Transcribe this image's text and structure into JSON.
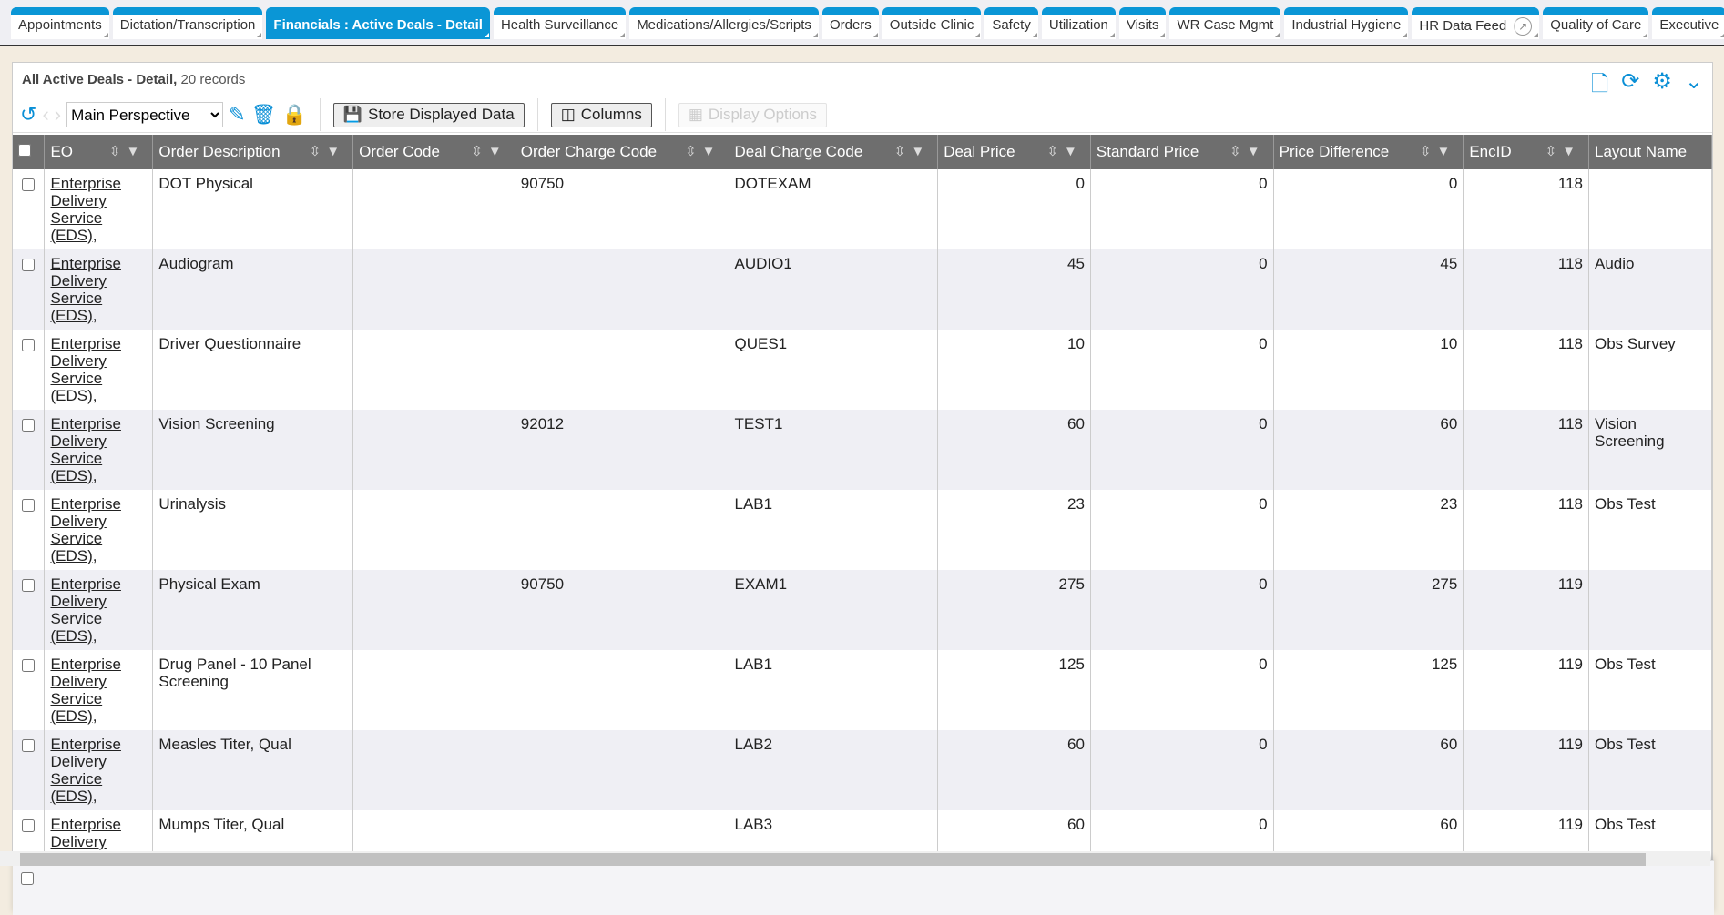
{
  "tabs": [
    {
      "label": "Appointments",
      "active": false
    },
    {
      "label": "Dictation/Transcription",
      "active": false
    },
    {
      "label": "Financials : Active Deals - Detail",
      "active": true
    },
    {
      "label": "Health Surveillance",
      "active": false
    },
    {
      "label": "Medications/Allergies/Scripts",
      "active": false
    },
    {
      "label": "Orders",
      "active": false
    },
    {
      "label": "Outside Clinic",
      "active": false
    },
    {
      "label": "Safety",
      "active": false
    },
    {
      "label": "Utilization",
      "active": false
    },
    {
      "label": "Visits",
      "active": false
    },
    {
      "label": "WR Case Mgmt",
      "active": false
    },
    {
      "label": "Industrial Hygiene",
      "active": false
    },
    {
      "label": "HR Data Feed",
      "active": false,
      "external": true
    },
    {
      "label": "Quality of Care",
      "active": false
    },
    {
      "label": "Executive",
      "active": false
    }
  ],
  "panel": {
    "title": "All Active Deals - Detail,",
    "count": "20 records"
  },
  "toolbar": {
    "perspective": "Main Perspective",
    "store": "Store Displayed Data",
    "columns": "Columns",
    "display_options": "Display Options"
  },
  "columns": [
    "EO",
    "Order Description",
    "Order Code",
    "Order Charge Code",
    "Deal Charge Code",
    "Deal Price",
    "Standard Price",
    "Price Difference",
    "EncID",
    "Layout Name"
  ],
  "rows": [
    [
      "Enterprise Delivery Service (EDS),",
      "DOT Physical",
      "",
      "90750",
      "DOTEXAM",
      "0",
      "0",
      "0",
      "118",
      ""
    ],
    [
      "Enterprise Delivery Service (EDS),",
      "Audiogram",
      "",
      "",
      "AUDIO1",
      "45",
      "0",
      "45",
      "118",
      "Audio"
    ],
    [
      "Enterprise Delivery Service (EDS),",
      "Driver Questionnaire",
      "",
      "",
      "QUES1",
      "10",
      "0",
      "10",
      "118",
      "Obs Survey"
    ],
    [
      "Enterprise Delivery Service (EDS),",
      "Vision Screening",
      "",
      "92012",
      "TEST1",
      "60",
      "0",
      "60",
      "118",
      "Vision Screening"
    ],
    [
      "Enterprise Delivery Service (EDS),",
      "Urinalysis",
      "",
      "",
      "LAB1",
      "23",
      "0",
      "23",
      "118",
      "Obs Test"
    ],
    [
      "Enterprise Delivery Service (EDS),",
      "Physical Exam",
      "",
      "90750",
      "EXAM1",
      "275",
      "0",
      "275",
      "119",
      ""
    ],
    [
      "Enterprise Delivery Service (EDS),",
      "Drug Panel - 10 Panel Screening",
      "",
      "",
      "LAB1",
      "125",
      "0",
      "125",
      "119",
      "Obs Test"
    ],
    [
      "Enterprise Delivery Service (EDS),",
      "Measles Titer, Qual",
      "",
      "",
      "LAB2",
      "60",
      "0",
      "60",
      "119",
      "Obs Test"
    ],
    [
      "Enterprise Delivery Service (EDS),",
      "Mumps Titer, Qual",
      "",
      "",
      "LAB3",
      "60",
      "0",
      "60",
      "119",
      "Obs Test"
    ]
  ]
}
